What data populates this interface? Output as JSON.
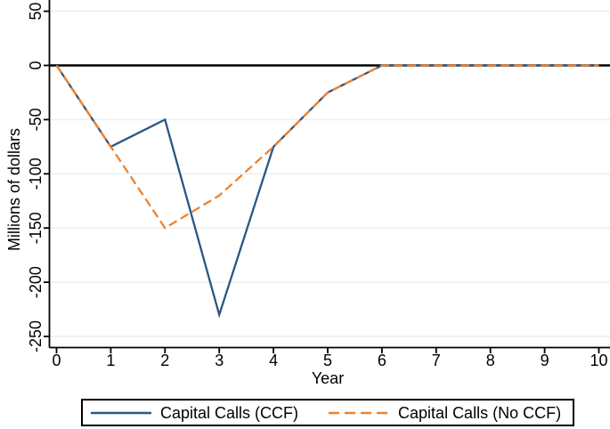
{
  "figure": {
    "background": "#ffffff"
  },
  "chart_data": {
    "type": "line",
    "title": "",
    "xlabel": "Year",
    "ylabel": "Millions of dollars",
    "xlim": [
      0,
      10
    ],
    "ylim": [
      -250,
      50
    ],
    "grid": "horizontal",
    "legend_position": "bottom",
    "x": [
      0,
      1,
      2,
      3,
      4,
      5,
      6,
      7,
      8,
      9,
      10
    ],
    "series": [
      {
        "name": "Capital Calls (CCF)",
        "values": [
          0,
          -75,
          -50,
          -230,
          -75,
          -25,
          0,
          0,
          0,
          0,
          0
        ],
        "color": "#2a5783",
        "dash": "solid"
      },
      {
        "name": "Capital Calls (No CCF)",
        "values": [
          0,
          -75,
          -150,
          -120,
          -75,
          -25,
          0,
          0,
          0,
          0,
          0
        ],
        "color": "#f0812e",
        "dash": "dashed"
      }
    ],
    "xticks": [
      {
        "v": 0,
        "label": "0"
      },
      {
        "v": 1,
        "label": "1"
      },
      {
        "v": 2,
        "label": "2"
      },
      {
        "v": 3,
        "label": "3"
      },
      {
        "v": 4,
        "label": "4"
      },
      {
        "v": 5,
        "label": "5"
      },
      {
        "v": 6,
        "label": "6"
      },
      {
        "v": 7,
        "label": "7"
      },
      {
        "v": 8,
        "label": "8"
      },
      {
        "v": 9,
        "label": "9"
      },
      {
        "v": 10,
        "label": "10"
      }
    ],
    "yticks": [
      {
        "v": 50,
        "label": "50"
      },
      {
        "v": 0,
        "label": "0"
      },
      {
        "v": -50,
        "label": "-50"
      },
      {
        "v": -100,
        "label": "-100"
      },
      {
        "v": -150,
        "label": "-150"
      },
      {
        "v": -200,
        "label": "-200"
      },
      {
        "v": -250,
        "label": "-250"
      }
    ],
    "colors": {
      "gridline": "#e6eff1",
      "zero_line": "#000000",
      "axis": "#000000",
      "text": "#000000"
    }
  },
  "legend": {
    "items": [
      {
        "label": "Capital Calls (CCF)"
      },
      {
        "label": "Capital Calls (No CCF)"
      }
    ]
  }
}
